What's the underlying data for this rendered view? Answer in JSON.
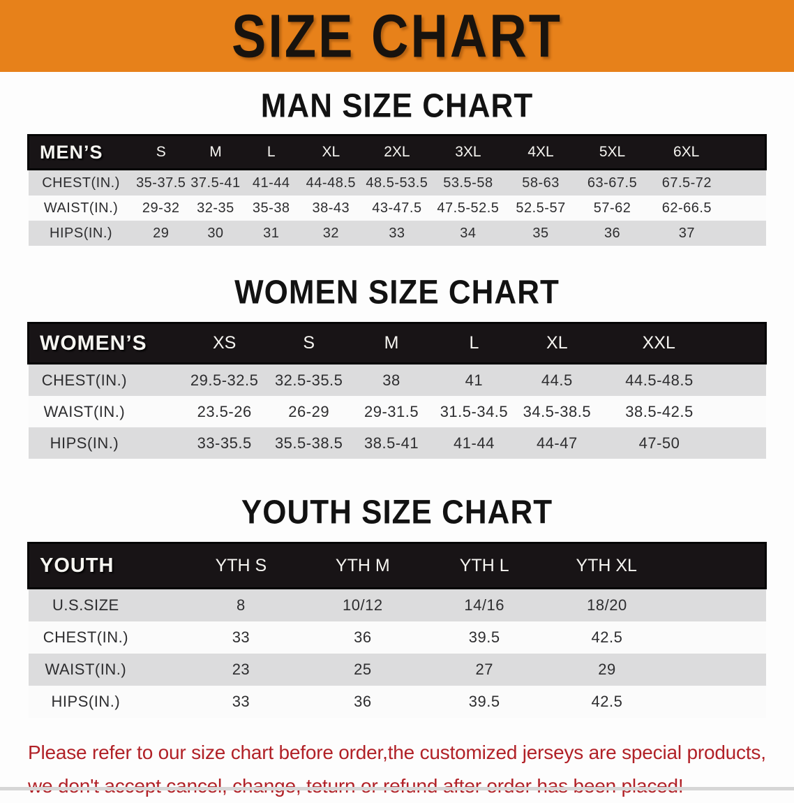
{
  "banner": {
    "title": "SIZE CHART"
  },
  "colors": {
    "banner_background": "#e7811a",
    "table_header_black": "#181416",
    "row_gray": "#dcdcdd",
    "notice_red": "#b12127"
  },
  "sections": [
    {
      "heading": "MAN SIZE CHART",
      "table": {
        "label_header": "MEN’S",
        "columns": [
          "S",
          "M",
          "L",
          "XL",
          "2XL",
          "3XL",
          "4XL",
          "5XL",
          "6XL"
        ],
        "rows": [
          {
            "label": "CHEST(IN.)",
            "values": [
              "35-37.5",
              "37.5-41",
              "41-44",
              "44-48.5",
              "48.5-53.5",
              "53.5-58",
              "58-63",
              "63-67.5",
              "67.5-72"
            ]
          },
          {
            "label": "WAIST(IN.)",
            "values": [
              "29-32",
              "32-35",
              "35-38",
              "38-43",
              "43-47.5",
              "47.5-52.5",
              "52.5-57",
              "57-62",
              "62-66.5"
            ]
          },
          {
            "label": "HIPS(IN.)",
            "values": [
              "29",
              "30",
              "31",
              "32",
              "33",
              "34",
              "35",
              "36",
              "37"
            ]
          }
        ]
      }
    },
    {
      "heading": "WOMEN SIZE CHART",
      "table": {
        "label_header": "WOMEN’S",
        "columns": [
          "XS",
          "S",
          "M",
          "L",
          "XL",
          "XXL"
        ],
        "rows": [
          {
            "label": "CHEST(IN.)",
            "values": [
              "29.5-32.5",
              "32.5-35.5",
              "38",
              "41",
              "44.5",
              "44.5-48.5"
            ]
          },
          {
            "label": "WAIST(IN.)",
            "values": [
              "23.5-26",
              "26-29",
              "29-31.5",
              "31.5-34.5",
              "34.5-38.5",
              "38.5-42.5"
            ]
          },
          {
            "label": "HIPS(IN.)",
            "values": [
              "33-35.5",
              "35.5-38.5",
              "38.5-41",
              "41-44",
              "44-47",
              "47-50"
            ]
          }
        ]
      }
    },
    {
      "heading": "YOUTH SIZE CHART",
      "table": {
        "label_header": "YOUTH",
        "columns": [
          "YTH S",
          "YTH M",
          "YTH L",
          "YTH XL"
        ],
        "rows": [
          {
            "label": "U.S.SIZE",
            "values": [
              "8",
              "10/12",
              "14/16",
              "18/20"
            ]
          },
          {
            "label": "CHEST(IN.)",
            "values": [
              "33",
              "36",
              "39.5",
              "42.5"
            ]
          },
          {
            "label": "WAIST(IN.)",
            "values": [
              "23",
              "25",
              "27",
              "29"
            ]
          },
          {
            "label": "HIPS(IN.)",
            "values": [
              "33",
              "36",
              "39.5",
              "42.5"
            ]
          }
        ]
      }
    }
  ],
  "notice": {
    "line1": "Please refer to our size chart before order,the customized jerseys are special products,",
    "line2": "we don't accept cancel, change, teturn or refund after order has been placed!"
  }
}
